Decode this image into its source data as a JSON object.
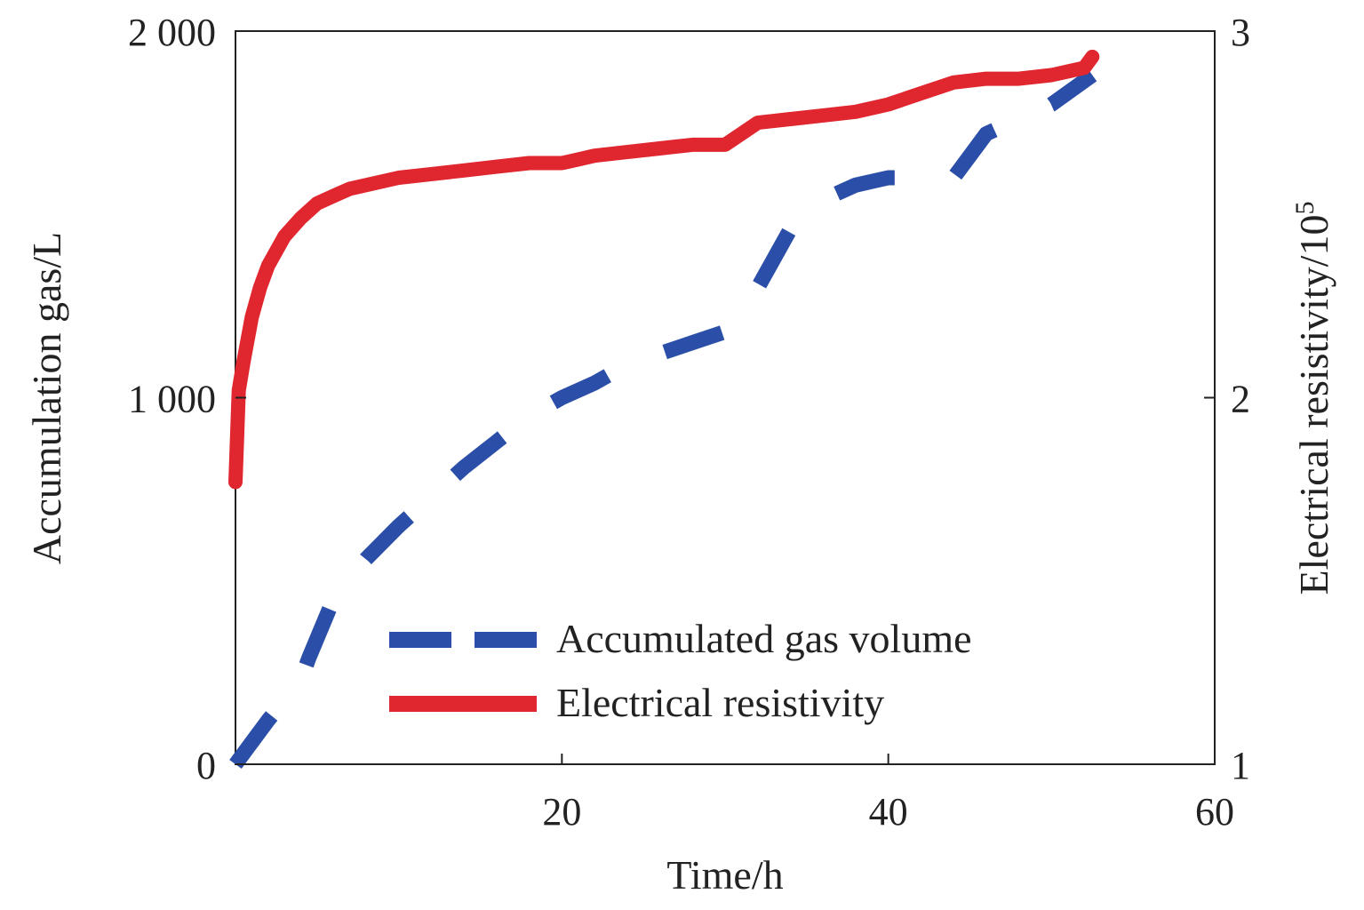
{
  "chart_data": {
    "type": "line",
    "title": "",
    "xlabel": "Time/h",
    "ylabel_left": "Accumulation gas/L",
    "ylabel_right_base": "Electrical resistivity/10",
    "ylabel_right_exponent": "5",
    "xlim": [
      0,
      60
    ],
    "ylim_left": [
      0,
      2000
    ],
    "ylim_right": [
      1,
      3
    ],
    "x_ticks": [
      20,
      40,
      60
    ],
    "x_tick_labels": [
      "20",
      "40",
      "60"
    ],
    "y_left_ticks": [
      0,
      1000,
      2000
    ],
    "y_left_tick_labels": [
      "0",
      "1 000",
      "2 000"
    ],
    "y_right_ticks": [
      1,
      2,
      3
    ],
    "y_right_tick_labels": [
      "1",
      "2",
      "3"
    ],
    "grid": false,
    "legend_position": "lower-center",
    "series": [
      {
        "name": "Accumulated gas volume",
        "axis": "left",
        "style": "dashed",
        "color": "#2b4fa8",
        "x": [
          0,
          2,
          4,
          4.5,
          6,
          8,
          10,
          12,
          14,
          16,
          18,
          20,
          22,
          24,
          26,
          28,
          30,
          31,
          32,
          33,
          34,
          35,
          36,
          37,
          38,
          39,
          40,
          41,
          42,
          43,
          44,
          45,
          46,
          48,
          50,
          52.5
        ],
        "values": [
          0,
          120,
          230,
          290,
          450,
          560,
          650,
          730,
          810,
          880,
          950,
          1000,
          1040,
          1090,
          1120,
          1150,
          1180,
          1220,
          1300,
          1380,
          1460,
          1500,
          1540,
          1560,
          1580,
          1590,
          1600,
          1600,
          1600,
          1600,
          1600,
          1660,
          1720,
          1760,
          1800,
          1880
        ]
      },
      {
        "name": "Electrical resistivity",
        "axis": "right",
        "style": "solid",
        "color": "#e0262e",
        "x": [
          0,
          0.2,
          0.5,
          1,
          1.5,
          2,
          3,
          4,
          5,
          6,
          7,
          8,
          10,
          12,
          14,
          16,
          18,
          20,
          21,
          22,
          24,
          26,
          28,
          30,
          31,
          32,
          34,
          36,
          38,
          40,
          42,
          44,
          46,
          48,
          50,
          51,
          52,
          52.5
        ],
        "values": [
          1.77,
          2.02,
          2.1,
          2.22,
          2.3,
          2.36,
          2.44,
          2.49,
          2.53,
          2.55,
          2.57,
          2.58,
          2.6,
          2.61,
          2.62,
          2.63,
          2.64,
          2.64,
          2.65,
          2.66,
          2.67,
          2.68,
          2.69,
          2.69,
          2.72,
          2.75,
          2.76,
          2.77,
          2.78,
          2.8,
          2.83,
          2.86,
          2.87,
          2.87,
          2.88,
          2.89,
          2.9,
          2.93
        ]
      }
    ]
  }
}
